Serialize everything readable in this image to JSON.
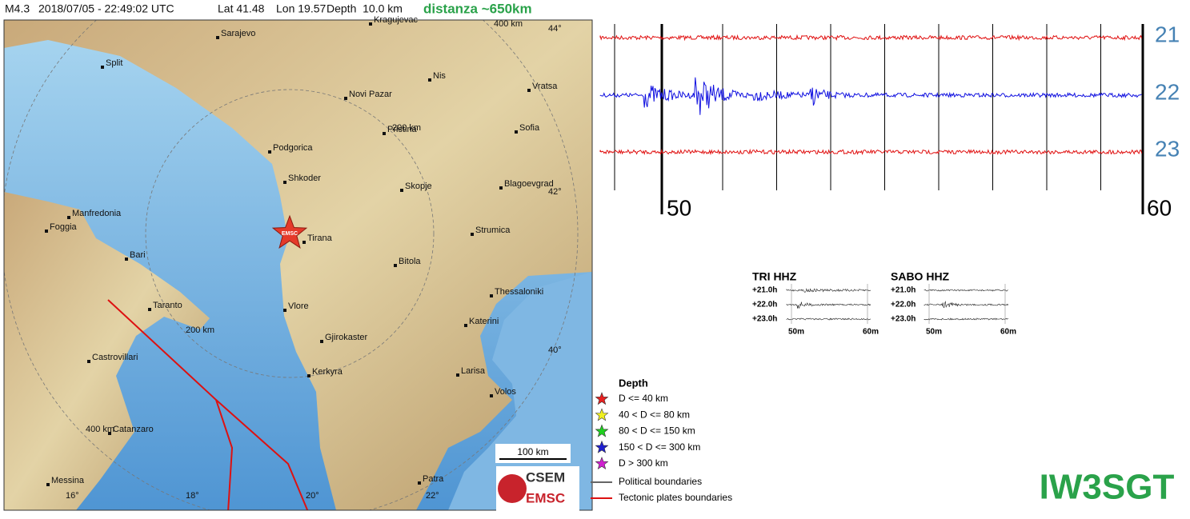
{
  "header": {
    "magnitude": "M4.3",
    "datetime": "2018/07/05 - 22:49:02 UTC",
    "lat": "Lat 41.48",
    "lon": "Lon 19.57",
    "depth": "Depth  10.0 km",
    "distance": "distanza ~650km"
  },
  "map": {
    "cities": [
      "Sarajevo",
      "Kragujevac",
      "Split",
      "Nis",
      "Novi Pazar",
      "Vratsa",
      "Pristina",
      "Sofia",
      "Podgorica",
      "Shkoder",
      "Skopje",
      "Blagoevgrad",
      "Manfredonia",
      "Foggia",
      "Tirana",
      "Strumica",
      "Bari",
      "Bitola",
      "Taranto",
      "Thessaloniki",
      "Vlore",
      "Katerini",
      "Gjirokaster",
      "Castrovillari",
      "Kerkyra",
      "Larisa",
      "Volos",
      "Catanzaro",
      "Messina",
      "Patra"
    ],
    "lat_labels": [
      "44°",
      "42°",
      "40°"
    ],
    "lon_labels": [
      "16°",
      "18°",
      "20°",
      "22°"
    ],
    "distance_labels": [
      "400 km",
      "200 km",
      "200 km",
      "400 km"
    ],
    "epicenter": "EMSC",
    "scale": "100 km",
    "logo": [
      "CSEM",
      "EMSC"
    ]
  },
  "seismogram": {
    "hours": [
      "21",
      "22",
      "23"
    ],
    "minutes": [
      "50",
      "60"
    ]
  },
  "mini": [
    {
      "title": "TRI HHZ",
      "rows": [
        "+21.0h",
        "+22.0h",
        "+23.0h"
      ],
      "ticks": [
        "50m",
        "60m"
      ]
    },
    {
      "title": "SABO HHZ",
      "rows": [
        "+21.0h",
        "+22.0h",
        "+23.0h"
      ],
      "ticks": [
        "50m",
        "60m"
      ]
    }
  ],
  "legend": {
    "title": "Depth",
    "items": [
      "D <= 40 km",
      "40 < D <= 80 km",
      "80 < D <= 150 km",
      "150 < D <= 300 km",
      "D > 300 km"
    ],
    "lines": [
      "Political boundaries",
      "Tectonic plates boundaries"
    ]
  },
  "callsign": "IW3SGT"
}
